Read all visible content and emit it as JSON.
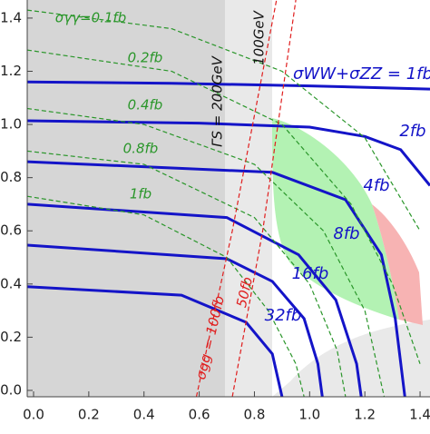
{
  "chart_data": {
    "type": "line",
    "xlim": [
      -0.023,
      1.436
    ],
    "ylim": [
      -0.024,
      1.468
    ],
    "xticks": [
      {
        "value": 0,
        "label": "0.0"
      },
      0.2,
      0.4,
      0.6,
      0.8,
      {
        "value": 1,
        "label": "1.0"
      },
      1.2,
      1.4
    ],
    "yticks": [
      {
        "value": 0,
        "label": "0.0"
      },
      0.2,
      0.4,
      0.6,
      0.8,
      {
        "value": 1,
        "label": "1.0"
      },
      1.2,
      1.4
    ],
    "series": [
      {
        "name": "σWW+σZZ = 1fb",
        "color": "#1414c8",
        "style": "solid",
        "x": [
          -0.023,
          0.5,
          1.0,
          1.436
        ],
        "values": [
          1.16,
          1.155,
          1.145,
          1.133
        ]
      },
      {
        "name": "2fb",
        "color": "#1414c8",
        "style": "solid",
        "x": [
          -0.023,
          0.6,
          1.0,
          1.2,
          1.33,
          1.436
        ],
        "values": [
          1.014,
          1.005,
          0.99,
          0.955,
          0.905,
          0.77
        ]
      },
      {
        "name": "4fb",
        "color": "#1414c8",
        "style": "solid",
        "x": [
          -0.023,
          0.865,
          1.13,
          1.26,
          1.31,
          1.345
        ],
        "values": [
          0.86,
          0.82,
          0.717,
          0.51,
          0.27,
          -0.024
        ]
      },
      {
        "name": "8fb",
        "color": "#1414c8",
        "style": "solid",
        "x": [
          -0.023,
          0.7,
          0.96,
          1.095,
          1.17,
          1.187
        ],
        "values": [
          0.7,
          0.65,
          0.51,
          0.34,
          0.1,
          -0.024
        ]
      },
      {
        "name": "16fb",
        "color": "#1414c8",
        "style": "solid",
        "x": [
          -0.023,
          0.7,
          0.865,
          0.98,
          1.03,
          1.046
        ],
        "values": [
          0.546,
          0.495,
          0.41,
          0.27,
          0.1,
          -0.024
        ]
      },
      {
        "name": "32fb",
        "color": "#1414c8",
        "style": "solid",
        "x": [
          -0.023,
          0.536,
          0.77,
          0.865,
          0.9
        ],
        "values": [
          0.39,
          0.358,
          0.256,
          0.137,
          -0.024
        ]
      },
      {
        "name": "σγγ=0.1fb",
        "color": "#2a962a",
        "style": "dashed",
        "x": [
          -0.023,
          0.5,
          0.9,
          1.2,
          1.4
        ],
        "values": [
          1.43,
          1.36,
          1.2,
          0.95,
          0.6
        ]
      },
      {
        "name": "0.2fb",
        "color": "#2a962a",
        "style": "dashed",
        "x": [
          -0.023,
          0.5,
          0.9,
          1.15,
          1.3,
          1.4
        ],
        "values": [
          1.28,
          1.2,
          1.0,
          0.7,
          0.4,
          0.1
        ]
      },
      {
        "name": "0.4fb",
        "color": "#2a962a",
        "style": "dashed",
        "x": [
          -0.023,
          0.4,
          0.8,
          1.05,
          1.2,
          1.27
        ],
        "values": [
          1.06,
          1.0,
          0.85,
          0.6,
          0.3,
          -0.024
        ]
      },
      {
        "name": "0.8fb",
        "color": "#2a962a",
        "style": "dashed",
        "x": [
          -0.023,
          0.4,
          0.8,
          1.0,
          1.1,
          1.13
        ],
        "values": [
          0.9,
          0.85,
          0.65,
          0.4,
          0.15,
          -0.024
        ]
      },
      {
        "name": "1fb",
        "color": "#2a962a",
        "style": "dashed",
        "x": [
          -0.023,
          0.4,
          0.7,
          0.85,
          0.95,
          0.98
        ],
        "values": [
          0.73,
          0.66,
          0.5,
          0.3,
          0.1,
          -0.024
        ]
      },
      {
        "name": "σgg = 100fb",
        "color": "#e01e1e",
        "style": "dashed",
        "x": [
          0.59,
          0.72,
          0.88
        ],
        "values": [
          -0.024,
          0.6,
          1.468
        ]
      },
      {
        "name": "50fb",
        "color": "#e01e1e",
        "style": "dashed",
        "x": [
          0.72,
          0.83,
          0.95
        ],
        "values": [
          -0.024,
          0.6,
          1.468
        ]
      }
    ],
    "annotations": [
      "ΓS = 200GeV",
      "100GeV"
    ]
  }
}
